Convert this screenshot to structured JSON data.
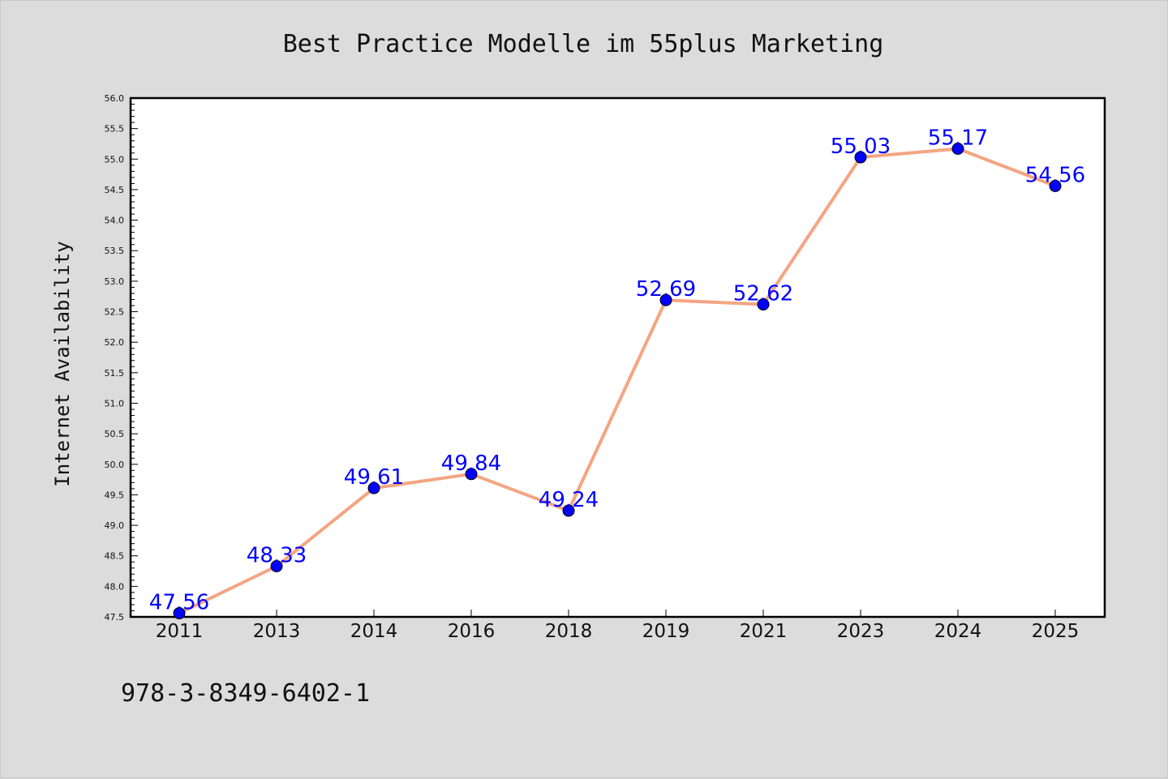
{
  "chart_data": {
    "type": "line",
    "title": "Best Practice Modelle im 55plus Marketing",
    "xlabel": "",
    "ylabel": "Internet Availability",
    "categories": [
      "2011",
      "2013",
      "2014",
      "2016",
      "2018",
      "2019",
      "2021",
      "2023",
      "2024",
      "2025"
    ],
    "series": [
      {
        "values": [
          47.56,
          48.33,
          49.61,
          49.84,
          49.24,
          52.69,
          52.62,
          55.03,
          55.17,
          54.56
        ],
        "labels": [
          "47.56",
          "48.33",
          "49.61",
          "49.84",
          "49.24",
          "52.69",
          "52.62",
          "55.03",
          "55.17",
          "54.56"
        ],
        "line_color": "#f4a582",
        "marker_color": "#0000ff"
      }
    ],
    "ylim": [
      47.5,
      56.0
    ],
    "yticks": [
      "47.5",
      "48.0",
      "48.5",
      "49.0",
      "49.5",
      "50.0",
      "50.5",
      "51.0",
      "51.5",
      "52.0",
      "52.5",
      "53.0",
      "53.5",
      "54.0",
      "54.5",
      "55.0",
      "55.5",
      "56.0"
    ],
    "grid": false,
    "legend": "none",
    "label_color": "#0000ff"
  },
  "footer": {
    "isbn": "978-3-8349-6402-1"
  }
}
